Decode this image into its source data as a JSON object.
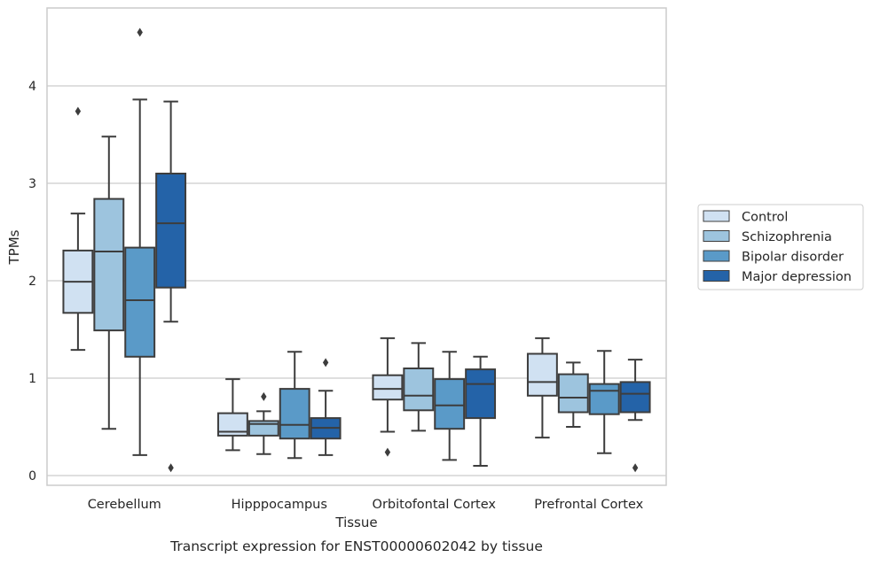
{
  "caption": "Transcript expression for ENST00000602042 by tissue",
  "chart_data": {
    "type": "box",
    "title": "",
    "xlabel": "Tissue",
    "ylabel": "TPMs",
    "categories": [
      "Cerebellum",
      "Hipppocampus",
      "Orbitofontal Cortex",
      "Prefrontal Cortex"
    ],
    "ylim": [
      -0.1,
      4.8
    ],
    "yticks": [
      0,
      1,
      2,
      3,
      4
    ],
    "grid": "horizontal",
    "legend_position": "center-right",
    "series": [
      {
        "name": "Control",
        "color": "#d0e1f2",
        "boxes": [
          {
            "whislo": 1.29,
            "q1": 1.67,
            "med": 1.99,
            "q3": 2.31,
            "whishi": 2.69,
            "fliers": [
              3.74
            ]
          },
          {
            "whislo": 0.26,
            "q1": 0.41,
            "med": 0.45,
            "q3": 0.64,
            "whishi": 0.99,
            "fliers": []
          },
          {
            "whislo": 0.45,
            "q1": 0.78,
            "med": 0.89,
            "q3": 1.03,
            "whishi": 1.41,
            "fliers": [
              0.24
            ]
          },
          {
            "whislo": 0.39,
            "q1": 0.82,
            "med": 0.96,
            "q3": 1.25,
            "whishi": 1.41,
            "fliers": []
          }
        ]
      },
      {
        "name": "Schizophrenia",
        "color": "#9dc4de",
        "boxes": [
          {
            "whislo": 0.48,
            "q1": 1.49,
            "med": 2.3,
            "q3": 2.84,
            "whishi": 3.48,
            "fliers": []
          },
          {
            "whislo": 0.22,
            "q1": 0.41,
            "med": 0.53,
            "q3": 0.56,
            "whishi": 0.66,
            "fliers": [
              0.81
            ]
          },
          {
            "whislo": 0.46,
            "q1": 0.67,
            "med": 0.82,
            "q3": 1.1,
            "whishi": 1.36,
            "fliers": []
          },
          {
            "whislo": 0.5,
            "q1": 0.65,
            "med": 0.8,
            "q3": 1.04,
            "whishi": 1.16,
            "fliers": []
          }
        ]
      },
      {
        "name": "Bipolar disorder",
        "color": "#5a9ac8",
        "boxes": [
          {
            "whislo": 0.21,
            "q1": 1.22,
            "med": 1.8,
            "q3": 2.34,
            "whishi": 3.86,
            "fliers": [
              4.55
            ]
          },
          {
            "whislo": 0.18,
            "q1": 0.38,
            "med": 0.52,
            "q3": 0.89,
            "whishi": 1.27,
            "fliers": []
          },
          {
            "whislo": 0.16,
            "q1": 0.48,
            "med": 0.72,
            "q3": 0.99,
            "whishi": 1.27,
            "fliers": []
          },
          {
            "whislo": 0.23,
            "q1": 0.63,
            "med": 0.87,
            "q3": 0.94,
            "whishi": 1.28,
            "fliers": []
          }
        ]
      },
      {
        "name": "Major depression",
        "color": "#2463a8",
        "boxes": [
          {
            "whislo": 1.58,
            "q1": 1.93,
            "med": 2.59,
            "q3": 3.1,
            "whishi": 3.84,
            "fliers": [
              0.08
            ]
          },
          {
            "whislo": 0.21,
            "q1": 0.38,
            "med": 0.49,
            "q3": 0.59,
            "whishi": 0.87,
            "fliers": [
              1.16
            ]
          },
          {
            "whislo": 0.1,
            "q1": 0.59,
            "med": 0.94,
            "q3": 1.09,
            "whishi": 1.22,
            "fliers": []
          },
          {
            "whislo": 0.57,
            "q1": 0.65,
            "med": 0.84,
            "q3": 0.96,
            "whishi": 1.19,
            "fliers": [
              0.08
            ]
          }
        ]
      }
    ]
  }
}
